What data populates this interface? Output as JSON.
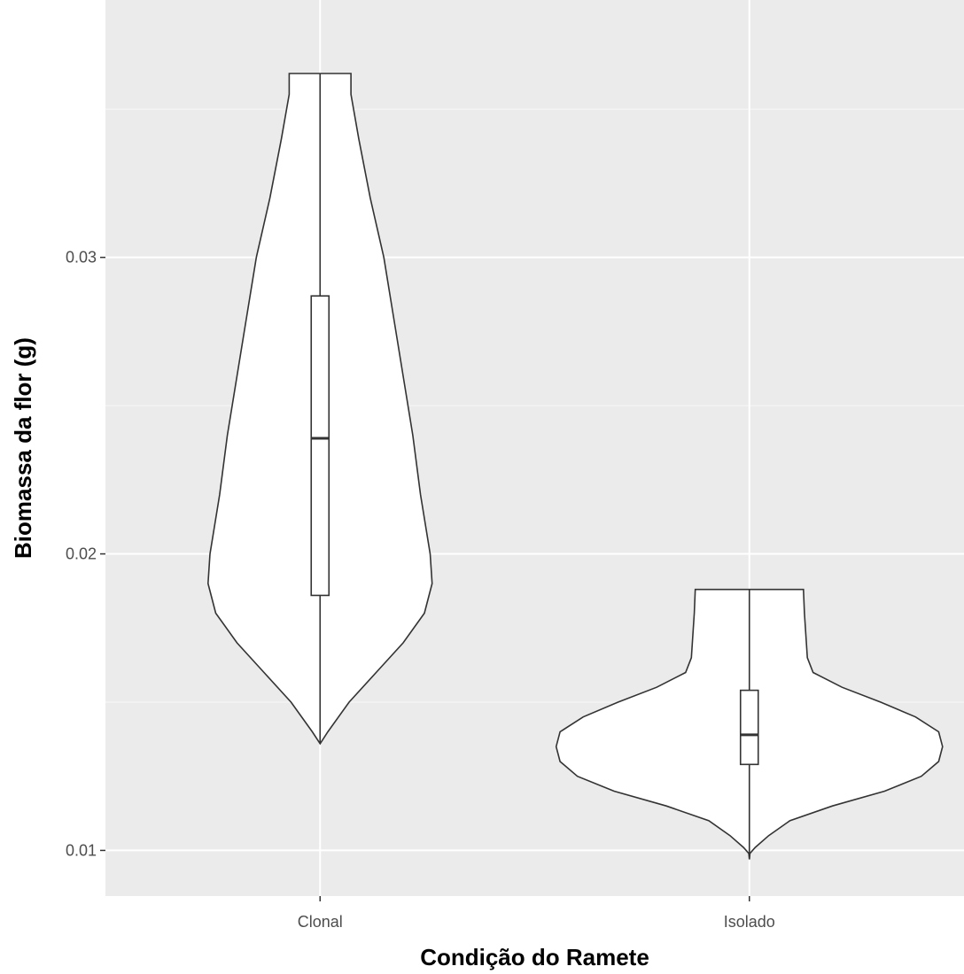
{
  "chart_data": {
    "type": "violin",
    "title": "",
    "xlabel": "Condição do Ramete",
    "ylabel": "Biomassa da flor (g)",
    "categories": [
      "Clonal",
      "Isolado"
    ],
    "ylim": [
      0.00846,
      0.03868
    ],
    "yticks": [
      0.01,
      0.02,
      0.03
    ],
    "ytick_labels": [
      "0.01",
      "0.02",
      "0.03"
    ],
    "grid": true,
    "legend": "none",
    "series": [
      {
        "category": "Clonal",
        "min": 0.0136,
        "q1": 0.0186,
        "median": 0.0239,
        "q3": 0.0287,
        "max": 0.0362,
        "density": [
          [
            0.0136,
            0.0
          ],
          [
            0.014,
            0.04
          ],
          [
            0.015,
            0.15
          ],
          [
            0.016,
            0.29
          ],
          [
            0.017,
            0.43
          ],
          [
            0.018,
            0.54
          ],
          [
            0.019,
            0.58
          ],
          [
            0.02,
            0.57
          ],
          [
            0.022,
            0.52
          ],
          [
            0.024,
            0.48
          ],
          [
            0.026,
            0.43
          ],
          [
            0.028,
            0.38
          ],
          [
            0.03,
            0.33
          ],
          [
            0.032,
            0.26
          ],
          [
            0.034,
            0.2
          ],
          [
            0.0355,
            0.16
          ],
          [
            0.0362,
            0.16
          ]
        ]
      },
      {
        "category": "Isolado",
        "min": 0.0097,
        "q1": 0.0129,
        "median": 0.0139,
        "q3": 0.0154,
        "max": 0.0188,
        "density": [
          [
            0.0097,
            0.0
          ],
          [
            0.0099,
            0.003
          ],
          [
            0.0101,
            0.03
          ],
          [
            0.0105,
            0.1
          ],
          [
            0.011,
            0.21
          ],
          [
            0.0115,
            0.43
          ],
          [
            0.012,
            0.7
          ],
          [
            0.0125,
            0.89
          ],
          [
            0.013,
            0.98
          ],
          [
            0.0135,
            1.0
          ],
          [
            0.014,
            0.98
          ],
          [
            0.0145,
            0.86
          ],
          [
            0.015,
            0.68
          ],
          [
            0.0155,
            0.48
          ],
          [
            0.016,
            0.33
          ],
          [
            0.0165,
            0.3
          ],
          [
            0.017,
            0.295
          ],
          [
            0.018,
            0.285
          ],
          [
            0.0188,
            0.28
          ]
        ]
      }
    ]
  },
  "style": {
    "panel_bg": "#ebebeb",
    "grid_major": "#ffffff",
    "grid_minor": "#f5f5f5",
    "violin_fill": "#ffffff",
    "stroke": "#333333"
  }
}
